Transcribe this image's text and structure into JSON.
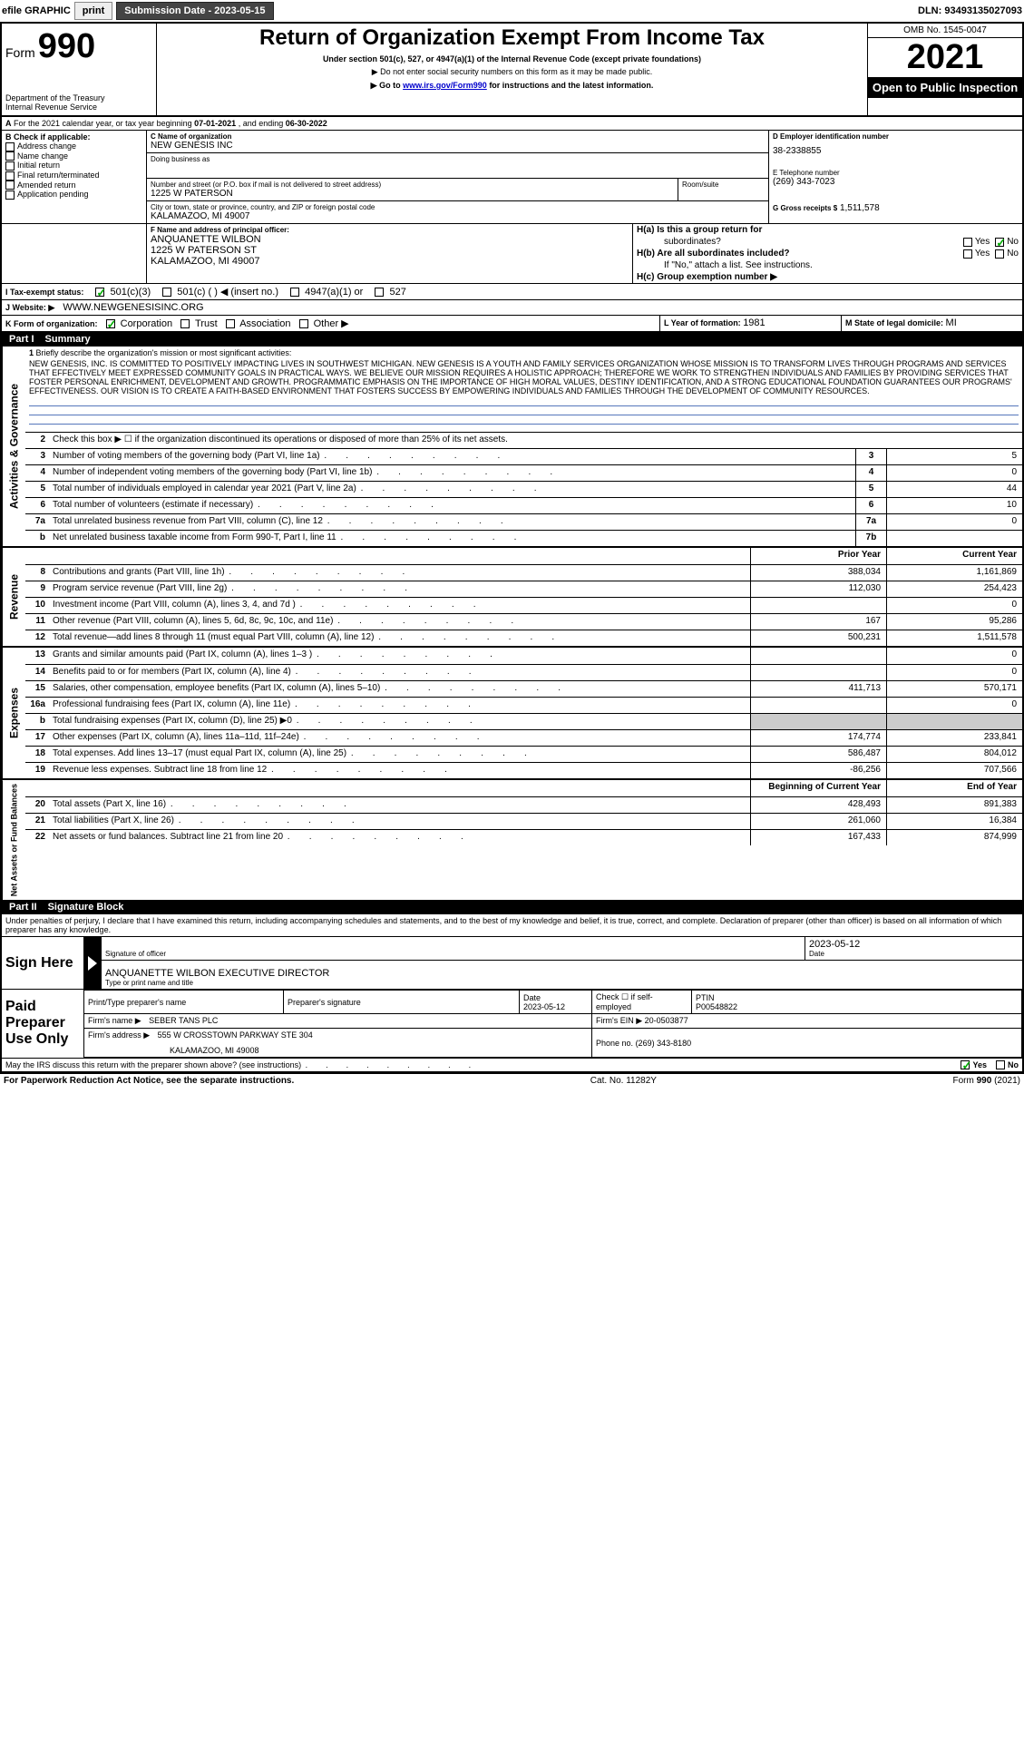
{
  "topbar": {
    "efile_label": "efile GRAPHIC",
    "print_btn": "print",
    "submit_btn": "Submission Date - 2023-05-15",
    "dln_label": "DLN: 93493135027093"
  },
  "header": {
    "form_prefix": "Form",
    "form_number": "990",
    "title": "Return of Organization Exempt From Income Tax",
    "subtitle1": "Under section 501(c), 527, or 4947(a)(1) of the Internal Revenue Code (except private foundations)",
    "subtitle2": "▶ Do not enter social security numbers on this form as it may be made public.",
    "subtitle3_prefix": "▶ Go to ",
    "subtitle3_link": "www.irs.gov/Form990",
    "subtitle3_suffix": " for instructions and the latest information.",
    "dept": "Department of the Treasury",
    "irs": "Internal Revenue Service",
    "omb": "OMB No. 1545-0047",
    "year": "2021",
    "open_public": "Open to Public Inspection"
  },
  "line_a": {
    "prefix": "A",
    "text": "For the 2021 calendar year, or tax year beginning ",
    "begin": "07-01-2021",
    "mid": " , and ending ",
    "end": "06-30-2022"
  },
  "col_b": {
    "header": "B Check if applicable:",
    "items": [
      "Address change",
      "Name change",
      "Initial return",
      "Final return/terminated",
      "Amended return",
      "Application pending"
    ]
  },
  "col_c": {
    "name_label": "C Name of organization",
    "name": "NEW GENESIS INC",
    "dba_label": "Doing business as",
    "addr_label": "Number and street (or P.O. box if mail is not delivered to street address)",
    "room_label": "Room/suite",
    "addr": "1225 W PATERSON",
    "city_label": "City or town, state or province, country, and ZIP or foreign postal code",
    "city": "KALAMAZOO, MI  49007"
  },
  "col_d": {
    "d_label": "D Employer identification number",
    "ein": "38-2338855",
    "e_label": "E Telephone number",
    "phone": "(269) 343-7023",
    "g_label": "G Gross receipts $",
    "g_val": "1,511,578"
  },
  "officer": {
    "f_label": "F  Name and address of principal officer:",
    "name": "ANQUANETTE WILBON",
    "addr1": "1225 W PATERSON ST",
    "addr2": "KALAMAZOO, MI  49007"
  },
  "h_block": {
    "ha_label": "H(a)  Is this a group return for",
    "ha_sub": "subordinates?",
    "hb_label": "H(b)  Are all subordinates included?",
    "hb_note": "If \"No,\" attach a list. See instructions.",
    "hc_label": "H(c)  Group exemption number ▶",
    "yes": "Yes",
    "no": "No"
  },
  "tax_status": {
    "label": "I   Tax-exempt status:",
    "opt1": "501(c)(3)",
    "opt2": "501(c) (   ) ◀ (insert no.)",
    "opt3": "4947(a)(1) or",
    "opt4": "527"
  },
  "website": {
    "label": "J   Website: ▶",
    "url": "WWW.NEWGENESISINC.ORG"
  },
  "k_line": {
    "label": "K Form of organization:",
    "opts": [
      "Corporation",
      "Trust",
      "Association",
      "Other ▶"
    ]
  },
  "l_line": {
    "label": "L Year of formation: ",
    "val": "1981"
  },
  "m_line": {
    "label": "M State of legal domicile: ",
    "val": "MI"
  },
  "part1": {
    "label": "Part I",
    "title": "Summary"
  },
  "mission": {
    "num": "1",
    "label": "Briefly describe the organization's mission or most significant activities:",
    "text": "NEW GENESIS, INC. IS COMMITTED TO POSITIVELY IMPACTING LIVES IN SOUTHWEST MICHIGAN. NEW GENESIS IS A YOUTH AND FAMILY SERVICES ORGANIZATION WHOSE MISSION IS TO TRANSFORM LIVES THROUGH PROGRAMS AND SERVICES THAT EFFECTIVELY MEET EXPRESSED COMMUNITY GOALS IN PRACTICAL WAYS. WE BELIEVE OUR MISSION REQUIRES A HOLISTIC APPROACH; THEREFORE WE WORK TO STRENGTHEN INDIVIDUALS AND FAMILIES BY PROVIDING SERVICES THAT FOSTER PERSONAL ENRICHMENT, DEVELOPMENT AND GROWTH. PROGRAMMATIC EMPHASIS ON THE IMPORTANCE OF HIGH MORAL VALUES, DESTINY IDENTIFICATION, AND A STRONG EDUCATIONAL FOUNDATION GUARANTEES OUR PROGRAMS' EFFECTIVENESS. OUR VISION IS TO CREATE A FAITH-BASED ENVIRONMENT THAT FOSTERS SUCCESS BY EMPOWERING INDIVIDUALS AND FAMILIES THROUGH THE DEVELOPMENT OF COMMUNITY RESOURCES."
  },
  "summary_section1_label": "Activities & Governance",
  "summary_section2_label": "Revenue",
  "summary_section3_label": "Expenses",
  "summary_section4_label": "Net Assets or Fund Balances",
  "rows_gov": [
    {
      "n": "2",
      "d": "Check this box ▶ ☐  if the organization discontinued its operations or disposed of more than 25% of its net assets."
    },
    {
      "n": "3",
      "d": "Number of voting members of the governing body (Part VI, line 1a)",
      "box": "3",
      "v": "5"
    },
    {
      "n": "4",
      "d": "Number of independent voting members of the governing body (Part VI, line 1b)",
      "box": "4",
      "v": "0"
    },
    {
      "n": "5",
      "d": "Total number of individuals employed in calendar year 2021 (Part V, line 2a)",
      "box": "5",
      "v": "44"
    },
    {
      "n": "6",
      "d": "Total number of volunteers (estimate if necessary)",
      "box": "6",
      "v": "10"
    },
    {
      "n": "7a",
      "d": "Total unrelated business revenue from Part VIII, column (C), line 12",
      "box": "7a",
      "v": "0"
    },
    {
      "n": "b",
      "d": "Net unrelated business taxable income from Form 990-T, Part I, line 11",
      "box": "7b",
      "v": ""
    }
  ],
  "col_headers": {
    "prior": "Prior Year",
    "current": "Current Year"
  },
  "rows_rev": [
    {
      "n": "8",
      "d": "Contributions and grants (Part VIII, line 1h)",
      "p": "388,034",
      "c": "1,161,869"
    },
    {
      "n": "9",
      "d": "Program service revenue (Part VIII, line 2g)",
      "p": "112,030",
      "c": "254,423"
    },
    {
      "n": "10",
      "d": "Investment income (Part VIII, column (A), lines 3, 4, and 7d )",
      "p": "",
      "c": "0"
    },
    {
      "n": "11",
      "d": "Other revenue (Part VIII, column (A), lines 5, 6d, 8c, 9c, 10c, and 11e)",
      "p": "167",
      "c": "95,286"
    },
    {
      "n": "12",
      "d": "Total revenue—add lines 8 through 11 (must equal Part VIII, column (A), line 12)",
      "p": "500,231",
      "c": "1,511,578"
    }
  ],
  "rows_exp": [
    {
      "n": "13",
      "d": "Grants and similar amounts paid (Part IX, column (A), lines 1–3 )",
      "p": "",
      "c": "0"
    },
    {
      "n": "14",
      "d": "Benefits paid to or for members (Part IX, column (A), line 4)",
      "p": "",
      "c": "0"
    },
    {
      "n": "15",
      "d": "Salaries, other compensation, employee benefits (Part IX, column (A), lines 5–10)",
      "p": "411,713",
      "c": "570,171"
    },
    {
      "n": "16a",
      "d": "Professional fundraising fees (Part IX, column (A), line 11e)",
      "p": "",
      "c": "0"
    },
    {
      "n": "b",
      "d": "Total fundraising expenses (Part IX, column (D), line 25) ▶0",
      "p": "shade",
      "c": "shade"
    },
    {
      "n": "17",
      "d": "Other expenses (Part IX, column (A), lines 11a–11d, 11f–24e)",
      "p": "174,774",
      "c": "233,841"
    },
    {
      "n": "18",
      "d": "Total expenses. Add lines 13–17 (must equal Part IX, column (A), line 25)",
      "p": "586,487",
      "c": "804,012"
    },
    {
      "n": "19",
      "d": "Revenue less expenses. Subtract line 18 from line 12",
      "p": "-86,256",
      "c": "707,566"
    }
  ],
  "col_headers2": {
    "beg": "Beginning of Current Year",
    "end": "End of Year"
  },
  "rows_net": [
    {
      "n": "20",
      "d": "Total assets (Part X, line 16)",
      "p": "428,493",
      "c": "891,383"
    },
    {
      "n": "21",
      "d": "Total liabilities (Part X, line 26)",
      "p": "261,060",
      "c": "16,384"
    },
    {
      "n": "22",
      "d": "Net assets or fund balances. Subtract line 21 from line 20",
      "p": "167,433",
      "c": "874,999"
    }
  ],
  "part2": {
    "label": "Part II",
    "title": "Signature Block"
  },
  "penalty": "Under penalties of perjury, I declare that I have examined this return, including accompanying schedules and statements, and to the best of my knowledge and belief, it is true, correct, and complete. Declaration of preparer (other than officer) is based on all information of which preparer has any knowledge.",
  "sign": {
    "here": "Sign Here",
    "sig_officer": "Signature of officer",
    "date_label": "Date",
    "date": "2023-05-12",
    "name_title": "ANQUANETTE WILBON  EXECUTIVE DIRECTOR",
    "name_label": "Type or print name and title"
  },
  "preparer": {
    "block_label": "Paid Preparer Use Only",
    "h1": "Print/Type preparer's name",
    "h2": "Preparer's signature",
    "h3": "Date",
    "h3v": "2023-05-12",
    "h4": "Check ☐ if self-employed",
    "h5": "PTIN",
    "h5v": "P00548822",
    "firm_name_l": "Firm's name    ▶",
    "firm_name": "SEBER TANS PLC",
    "firm_ein_l": "Firm's EIN ▶",
    "firm_ein": "20-0503877",
    "firm_addr_l": "Firm's address ▶",
    "firm_addr1": "555 W CROSSTOWN PARKWAY STE 304",
    "firm_addr2": "KALAMAZOO, MI  49008",
    "phone_l": "Phone no.",
    "phone": "(269) 343-8180"
  },
  "discuss": {
    "q": "May the IRS discuss this return with the preparer shown above? (see instructions)",
    "yes": "Yes",
    "no": "No"
  },
  "footer": {
    "left": "For Paperwork Reduction Act Notice, see the separate instructions.",
    "mid": "Cat. No. 11282Y",
    "right_prefix": "Form ",
    "right_form": "990",
    "right_suffix": " (2021)"
  }
}
